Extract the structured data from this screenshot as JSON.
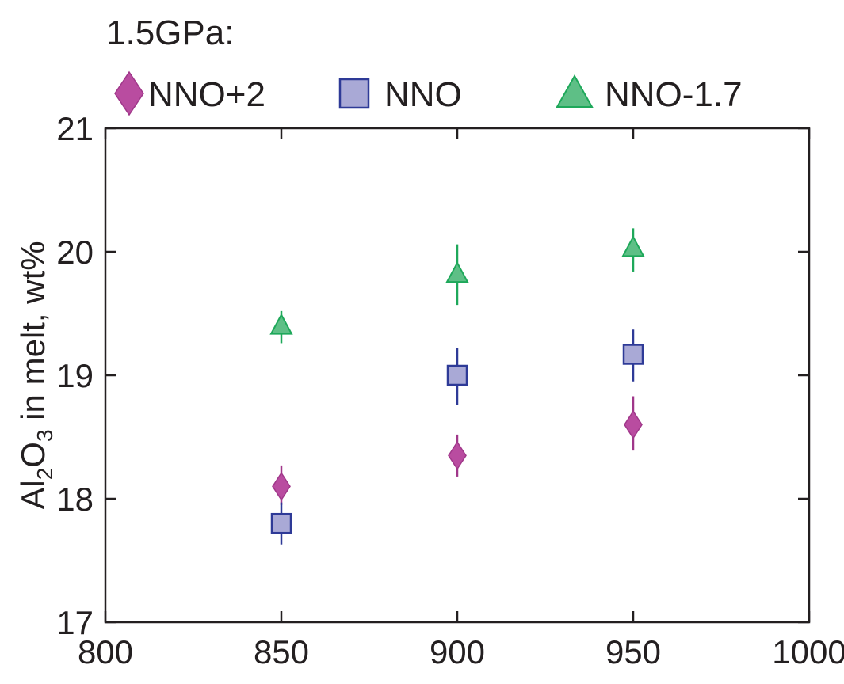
{
  "chart_data": {
    "type": "scatter",
    "title": "1.5GPa:",
    "xlabel": "",
    "ylabel_parts": [
      "Al",
      "2",
      "O",
      "3",
      " in melt, wt%"
    ],
    "xlim": [
      800,
      1000
    ],
    "ylim": [
      17,
      21
    ],
    "xticks": [
      800,
      850,
      900,
      950,
      1000
    ],
    "yticks": [
      17,
      18,
      19,
      20,
      21
    ],
    "grid": false,
    "legend_position": "top",
    "series": [
      {
        "name": "NNO+2",
        "marker": "diamond",
        "fill": "#b94ca0",
        "stroke": "#a0378a",
        "points": [
          {
            "x": 850,
            "y": 18.1,
            "err_low": 17.95,
            "err_high": 18.27
          },
          {
            "x": 900,
            "y": 18.35,
            "err_low": 18.18,
            "err_high": 18.52
          },
          {
            "x": 950,
            "y": 18.6,
            "err_low": 18.39,
            "err_high": 18.83
          }
        ]
      },
      {
        "name": "NNO",
        "marker": "square",
        "fill": "#a9a9d6",
        "stroke": "#2e3a97",
        "points": [
          {
            "x": 850,
            "y": 17.8,
            "err_low": 17.63,
            "err_high": 17.97
          },
          {
            "x": 900,
            "y": 19.0,
            "err_low": 18.76,
            "err_high": 19.22
          },
          {
            "x": 950,
            "y": 19.17,
            "err_low": 18.95,
            "err_high": 19.37
          }
        ]
      },
      {
        "name": "NNO-1.7",
        "marker": "triangle",
        "fill": "#5ebf86",
        "stroke": "#1ea85a",
        "points": [
          {
            "x": 850,
            "y": 19.4,
            "err_low": 19.26,
            "err_high": 19.52
          },
          {
            "x": 900,
            "y": 19.82,
            "err_low": 19.57,
            "err_high": 20.06
          },
          {
            "x": 950,
            "y": 20.03,
            "err_low": 19.84,
            "err_high": 20.19
          }
        ]
      }
    ]
  }
}
